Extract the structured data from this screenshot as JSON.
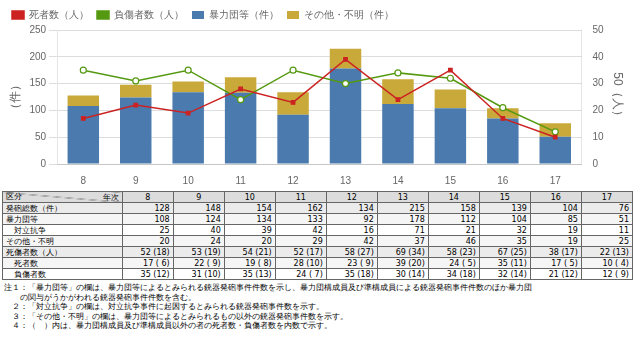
{
  "chart_data": {
    "type": "bar",
    "stacked": true,
    "categories": [
      "8",
      "9",
      "10",
      "11",
      "12",
      "13",
      "14",
      "15",
      "16",
      "17"
    ],
    "series": [
      {
        "name": "暴力団等（件）",
        "type": "bar",
        "color": "#4A7AAE",
        "values": [
          108,
          124,
          134,
          133,
          92,
          178,
          112,
          104,
          85,
          51
        ]
      },
      {
        "name": "その他・不明（件）",
        "type": "bar",
        "color": "#C8A93A",
        "values": [
          20,
          24,
          20,
          29,
          42,
          37,
          46,
          35,
          19,
          25
        ]
      },
      {
        "name": "死者数（人）",
        "type": "line",
        "axis": "y2",
        "color": "#CC2222",
        "marker": "square",
        "values": [
          17,
          22,
          19,
          28,
          23,
          39,
          24,
          35,
          17,
          10
        ]
      },
      {
        "name": "負傷者数（人）",
        "type": "line",
        "axis": "y2",
        "color": "#559911",
        "marker": "circle",
        "values": [
          35,
          31,
          35,
          24,
          35,
          30,
          34,
          32,
          21,
          12
        ]
      }
    ],
    "ylabel": "（件）",
    "y2label": "50（人）",
    "ylim": [
      0,
      250
    ],
    "yticks": [
      0,
      50,
      100,
      150,
      200,
      250
    ],
    "y2lim": [
      0,
      50
    ],
    "y2ticks": [
      0,
      10,
      20,
      30,
      40,
      50
    ],
    "grid": true,
    "legend": "upper left",
    "table": {
      "header": [
        "区分",
        "年次",
        "8",
        "9",
        "10",
        "11",
        "12",
        "13",
        "14",
        "15",
        "16",
        "17"
      ],
      "rows": [
        [
          "発砲総数（件）",
          "128",
          "148",
          "154",
          "162",
          "134",
          "215",
          "158",
          "139",
          "104",
          "76"
        ],
        [
          "暴力団等",
          "108",
          "124",
          "134",
          "133",
          "92",
          "178",
          "112",
          "104",
          "85",
          "51"
        ],
        [
          "　対立抗争",
          "25",
          "40",
          "39",
          "42",
          "16",
          "71",
          "21",
          "32",
          "19",
          "11"
        ],
        [
          "その他・不明",
          "20",
          "24",
          "20",
          "29",
          "42",
          "37",
          "46",
          "35",
          "19",
          "25"
        ],
        [
          "死傷者数（人）",
          "52 (18)",
          "53 (19)",
          "54 (21)",
          "52 (17)",
          "58 (27)",
          "69 (34)",
          "58 (23)",
          "67 (25)",
          "38 (17)",
          "22 (13)"
        ],
        [
          "　死者数",
          "17 ( 6)",
          "22 ( 9)",
          "19 ( 8)",
          "28 (10)",
          "23 ( 9)",
          "39 (20)",
          "24 ( 5)",
          "35 (11)",
          "17 ( 5)",
          "10 ( 4)"
        ],
        [
          "　負傷者数",
          "35 (12)",
          "31 (10)",
          "35 (13)",
          "24 ( 7)",
          "35 (18)",
          "30 (14)",
          "34 (18)",
          "32 (14)",
          "21 (12)",
          "12 ( 9)"
        ]
      ]
    },
    "notes": [
      "注１：「暴力団等」の欄は、暴力団等によるとみられる銃器発砲事件件数を示し、暴力団構成員及び準構成員による銃器発砲事件件数のほか暴力団",
      "　　の関与がうかがわれる銃器発砲事件件数を含む。",
      "　２：「対立抗争」の欄は、対立抗争事件に起因するとみられる銃器発砲事件数を示す。",
      "　３：「その他・不明」の欄は、暴力団等によるとみられるもの以外の銃器発砲事件数を示す。",
      "　４：（　）内は、暴力団構成員及び準構成員以外の者の死者数・負傷者数を内数で示す。"
    ]
  }
}
